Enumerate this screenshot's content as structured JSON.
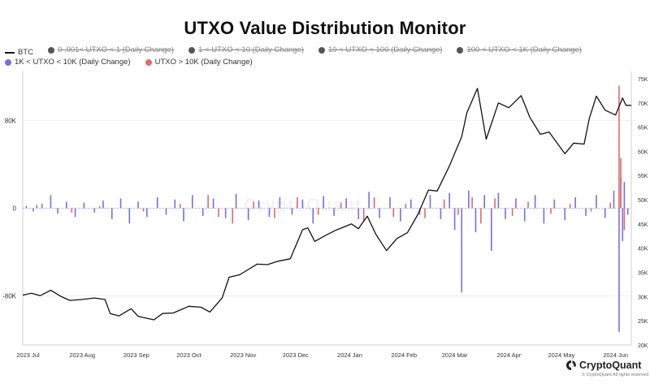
{
  "chart_data": {
    "type": "bar",
    "title": "UTXO Value Distribution Monitor",
    "legend": [
      {
        "name": "BTC",
        "kind": "line",
        "color": "#111111",
        "hidden": false
      },
      {
        "name": "0 .001< UTXO < 1 (Daily Change)",
        "kind": "dot",
        "color": "#555555",
        "hidden": true
      },
      {
        "name": "1 < UTXO < 10 (Daily Change)",
        "kind": "dot",
        "color": "#555555",
        "hidden": true
      },
      {
        "name": "10 < UTXO < 100 (Daily Change)",
        "kind": "dot",
        "color": "#555555",
        "hidden": true
      },
      {
        "name": "100 < UTXO < 1K (Daily Change)",
        "kind": "dot",
        "color": "#555555",
        "hidden": true
      },
      {
        "name": "1K < UTXO < 10K (Daily Change)",
        "kind": "dot",
        "color": "#7b6ee0",
        "hidden": false
      },
      {
        "name": "UTXO > 10K (Daily Change)",
        "kind": "dot",
        "color": "#e06a6a",
        "hidden": false
      }
    ],
    "x_ticks": [
      "2023 Jul",
      "2023 Aug",
      "2023 Sep",
      "2023 Oct",
      "2023 Nov",
      "2023 Dec",
      "2024 Jan",
      "2024 Feb",
      "2024 Mar",
      "2024 Apr",
      "2024 May",
      "2024 Jun"
    ],
    "y_left_ticks": [
      {
        "label": "80K",
        "value": 80000
      },
      {
        "label": "0",
        "value": 0
      },
      {
        "label": "-80K",
        "value": -80000
      }
    ],
    "y_left_range": [
      -125000,
      125000
    ],
    "y_right_ticks": [
      "75K",
      "70K",
      "65K",
      "60K",
      "55K",
      "50K",
      "45K",
      "40K",
      "35K",
      "30K",
      "25K",
      "20K"
    ],
    "y_right_values": [
      75000,
      70000,
      65000,
      60000,
      55000,
      50000,
      45000,
      40000,
      35000,
      30000,
      25000,
      20000
    ],
    "y_right_range": [
      20000,
      76500
    ],
    "x_range": [
      "2023-06-28",
      "2024-06-10"
    ],
    "grid": true,
    "legend_position": "top-left",
    "colors": {
      "btc": "#111111",
      "k1_10k": "#7b6ee0",
      "gt10k": "#e06a6a"
    },
    "series": [
      {
        "name": "BTC",
        "axis": "right",
        "points": [
          [
            "2023-06-28",
            30300
          ],
          [
            "2023-07-03",
            30700
          ],
          [
            "2023-07-08",
            30200
          ],
          [
            "2023-07-14",
            31300
          ],
          [
            "2023-07-20",
            30000
          ],
          [
            "2023-07-25",
            29200
          ],
          [
            "2023-08-01",
            29400
          ],
          [
            "2023-08-08",
            29700
          ],
          [
            "2023-08-14",
            29400
          ],
          [
            "2023-08-17",
            26500
          ],
          [
            "2023-08-22",
            26000
          ],
          [
            "2023-08-29",
            27500
          ],
          [
            "2023-09-02",
            25900
          ],
          [
            "2023-09-11",
            25200
          ],
          [
            "2023-09-16",
            26500
          ],
          [
            "2023-09-22",
            26600
          ],
          [
            "2023-10-01",
            28000
          ],
          [
            "2023-10-08",
            27800
          ],
          [
            "2023-10-13",
            26800
          ],
          [
            "2023-10-20",
            29700
          ],
          [
            "2023-10-24",
            34000
          ],
          [
            "2023-10-30",
            34500
          ],
          [
            "2023-11-09",
            36700
          ],
          [
            "2023-11-15",
            36600
          ],
          [
            "2023-11-21",
            37300
          ],
          [
            "2023-11-28",
            37800
          ],
          [
            "2023-12-05",
            43800
          ],
          [
            "2023-12-08",
            44200
          ],
          [
            "2023-12-12",
            41400
          ],
          [
            "2023-12-18",
            42600
          ],
          [
            "2023-12-24",
            43700
          ],
          [
            "2024-01-02",
            45000
          ],
          [
            "2024-01-06",
            44000
          ],
          [
            "2024-01-11",
            46600
          ],
          [
            "2024-01-16",
            42800
          ],
          [
            "2024-01-22",
            39500
          ],
          [
            "2024-01-28",
            42000
          ],
          [
            "2024-02-03",
            43200
          ],
          [
            "2024-02-09",
            47000
          ],
          [
            "2024-02-15",
            52000
          ],
          [
            "2024-02-20",
            51800
          ],
          [
            "2024-02-27",
            57000
          ],
          [
            "2024-03-05",
            63000
          ],
          [
            "2024-03-08",
            68000
          ],
          [
            "2024-03-14",
            73000
          ],
          [
            "2024-03-19",
            62500
          ],
          [
            "2024-03-26",
            70000
          ],
          [
            "2024-04-01",
            69000
          ],
          [
            "2024-04-08",
            71500
          ],
          [
            "2024-04-13",
            67000
          ],
          [
            "2024-04-19",
            63500
          ],
          [
            "2024-04-24",
            64000
          ],
          [
            "2024-04-30",
            61000
          ],
          [
            "2024-05-03",
            59500
          ],
          [
            "2024-05-08",
            61700
          ],
          [
            "2024-05-14",
            61500
          ],
          [
            "2024-05-17",
            66800
          ],
          [
            "2024-05-21",
            71400
          ],
          [
            "2024-05-26",
            68500
          ],
          [
            "2024-06-01",
            67500
          ],
          [
            "2024-06-05",
            71000
          ],
          [
            "2024-06-07",
            69500
          ],
          [
            "2024-06-10",
            69500
          ]
        ]
      },
      {
        "name": "1K < UTXO < 10K (Daily Change)",
        "axis": "left",
        "color": "#7b6ee0",
        "points": [
          [
            "2023-06-30",
            2000
          ],
          [
            "2023-07-04",
            -3000
          ],
          [
            "2023-07-09",
            4000
          ],
          [
            "2023-07-14",
            12000
          ],
          [
            "2023-07-18",
            -5000
          ],
          [
            "2023-07-23",
            6000
          ],
          [
            "2023-07-28",
            -8000
          ],
          [
            "2023-08-02",
            5000
          ],
          [
            "2023-08-08",
            -4000
          ],
          [
            "2023-08-13",
            7000
          ],
          [
            "2023-08-18",
            -10000
          ],
          [
            "2023-08-23",
            9000
          ],
          [
            "2023-08-28",
            -14000
          ],
          [
            "2023-09-02",
            6000
          ],
          [
            "2023-09-07",
            -8000
          ],
          [
            "2023-09-13",
            10000
          ],
          [
            "2023-09-18",
            -6000
          ],
          [
            "2023-09-23",
            8000
          ],
          [
            "2023-09-28",
            -12000
          ],
          [
            "2023-10-03",
            12000
          ],
          [
            "2023-10-09",
            -7000
          ],
          [
            "2023-10-15",
            9000
          ],
          [
            "2023-10-22",
            -9000
          ],
          [
            "2023-10-28",
            13000
          ],
          [
            "2023-11-04",
            -11000
          ],
          [
            "2023-11-10",
            7000
          ],
          [
            "2023-11-16",
            -8000
          ],
          [
            "2023-11-22",
            10000
          ],
          [
            "2023-11-29",
            -6000
          ],
          [
            "2023-12-05",
            8000
          ],
          [
            "2023-12-11",
            -14000
          ],
          [
            "2023-12-17",
            11000
          ],
          [
            "2023-12-23",
            -7000
          ],
          [
            "2023-12-30",
            9000
          ],
          [
            "2024-01-06",
            -10000
          ],
          [
            "2024-01-12",
            15000
          ],
          [
            "2024-01-18",
            -9000
          ],
          [
            "2024-01-24",
            10000
          ],
          [
            "2024-01-30",
            -12000
          ],
          [
            "2024-02-05",
            8000
          ],
          [
            "2024-02-10",
            -6000
          ],
          [
            "2024-02-16",
            12000
          ],
          [
            "2024-02-22",
            -10000
          ],
          [
            "2024-02-27",
            14000
          ],
          [
            "2024-03-01",
            -20000
          ],
          [
            "2024-03-05",
            -77000
          ],
          [
            "2024-03-09",
            16000
          ],
          [
            "2024-03-13",
            -22000
          ],
          [
            "2024-03-18",
            12000
          ],
          [
            "2024-03-22",
            -39000
          ],
          [
            "2024-03-26",
            14000
          ],
          [
            "2024-03-30",
            -10000
          ],
          [
            "2024-04-05",
            9000
          ],
          [
            "2024-04-10",
            -12000
          ],
          [
            "2024-04-16",
            12000
          ],
          [
            "2024-04-21",
            -14000
          ],
          [
            "2024-04-27",
            8000
          ],
          [
            "2024-05-03",
            -11000
          ],
          [
            "2024-05-09",
            10000
          ],
          [
            "2024-05-15",
            -7000
          ],
          [
            "2024-05-21",
            12000
          ],
          [
            "2024-05-26",
            -9000
          ],
          [
            "2024-05-31",
            16000
          ],
          [
            "2024-06-03",
            -113000
          ],
          [
            "2024-06-04",
            28000
          ],
          [
            "2024-06-05",
            -30000
          ],
          [
            "2024-06-06",
            24000
          ],
          [
            "2024-06-08",
            -6000
          ]
        ]
      },
      {
        "name": "UTXO > 10K (Daily Change)",
        "axis": "left",
        "color": "#e06a6a",
        "points": [
          [
            "2023-07-06",
            3000
          ],
          [
            "2023-07-26",
            -4000
          ],
          [
            "2023-08-11",
            2000
          ],
          [
            "2023-09-05",
            -3000
          ],
          [
            "2023-09-26",
            4000
          ],
          [
            "2023-10-12",
            12000
          ],
          [
            "2023-10-18",
            -8000
          ],
          [
            "2023-10-26",
            -14000
          ],
          [
            "2023-11-07",
            6000
          ],
          [
            "2023-11-19",
            -9000
          ],
          [
            "2023-12-02",
            10000
          ],
          [
            "2023-12-14",
            -6000
          ],
          [
            "2023-12-27",
            5000
          ],
          [
            "2024-01-09",
            -12000
          ],
          [
            "2024-01-15",
            10000
          ],
          [
            "2024-01-26",
            -8000
          ],
          [
            "2024-02-02",
            4000
          ],
          [
            "2024-02-13",
            -9000
          ],
          [
            "2024-02-24",
            8000
          ],
          [
            "2024-03-03",
            -6000
          ],
          [
            "2024-03-11",
            10000
          ],
          [
            "2024-03-16",
            -14000
          ],
          [
            "2024-03-24",
            9000
          ],
          [
            "2024-04-03",
            -7000
          ],
          [
            "2024-04-12",
            6000
          ],
          [
            "2024-04-25",
            -5000
          ],
          [
            "2024-05-06",
            4000
          ],
          [
            "2024-05-18",
            -3000
          ],
          [
            "2024-05-29",
            5000
          ],
          [
            "2024-06-03",
            112000
          ],
          [
            "2024-06-04",
            46000
          ],
          [
            "2024-06-06",
            -20000
          ]
        ]
      }
    ]
  },
  "brand": {
    "name": "CryptoQuant",
    "copyright": "© CryptoQuant All rights reserved",
    "watermark": "CryptoQuant"
  }
}
